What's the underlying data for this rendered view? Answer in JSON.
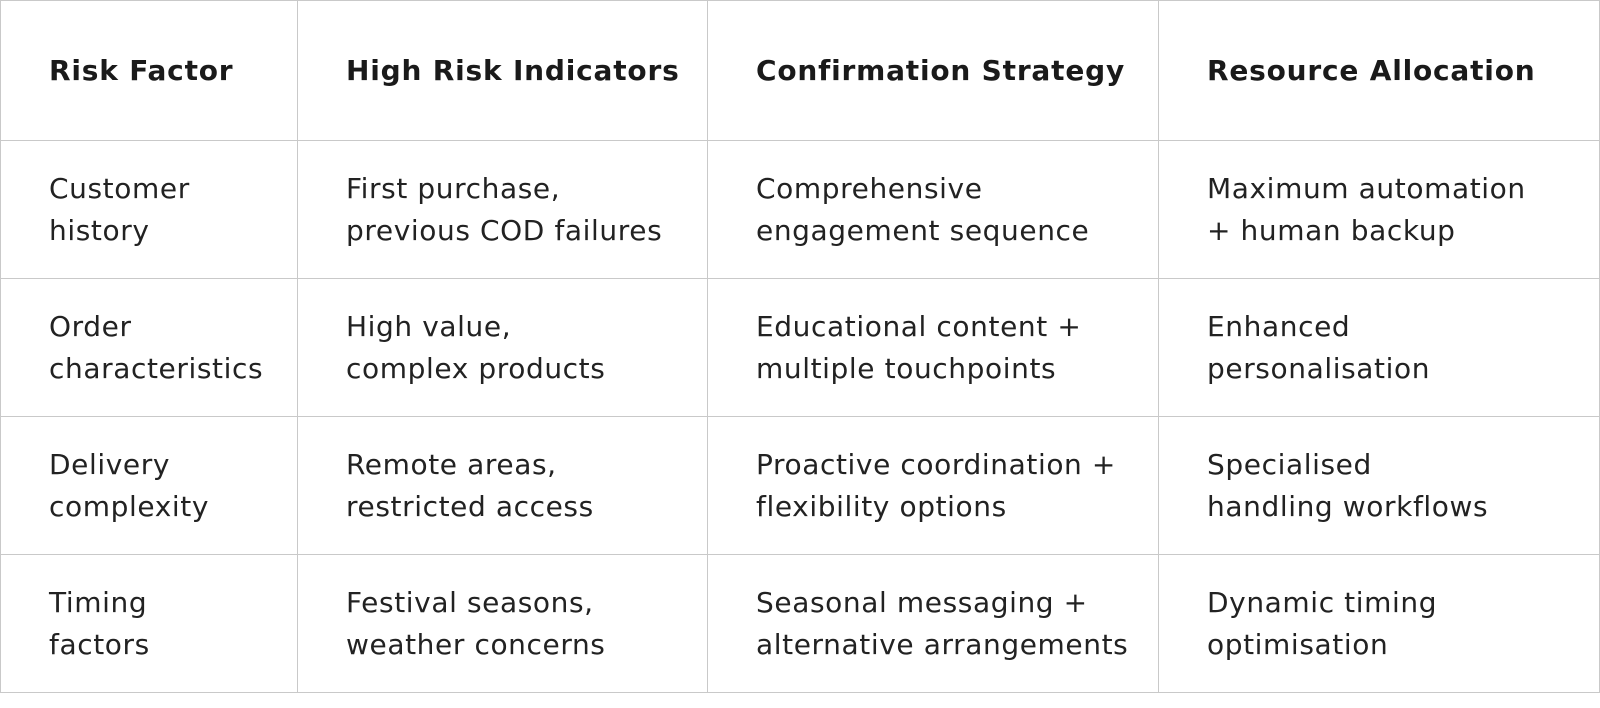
{
  "table": {
    "headers": [
      "Risk Factor",
      "High Risk Indicators",
      "Confirmation Strategy",
      "Resource Allocation"
    ],
    "rows": [
      [
        "Customer\nhistory",
        "First purchase,\nprevious COD failures",
        "Comprehensive\nengagement sequence",
        "Maximum automation\n+ human backup"
      ],
      [
        "Order\ncharacteristics",
        "High value,\ncomplex products",
        "Educational content +\nmultiple touchpoints",
        "Enhanced\npersonalisation"
      ],
      [
        "Delivery\ncomplexity",
        "Remote areas,\nrestricted access",
        "Proactive coordination +\nflexibility options",
        "Specialised\nhandling workflows"
      ],
      [
        "Timing\nfactors",
        "Festival seasons,\nweather concerns",
        "Seasonal messaging +\nalternative arrangements",
        "Dynamic timing\noptimisation"
      ]
    ]
  }
}
